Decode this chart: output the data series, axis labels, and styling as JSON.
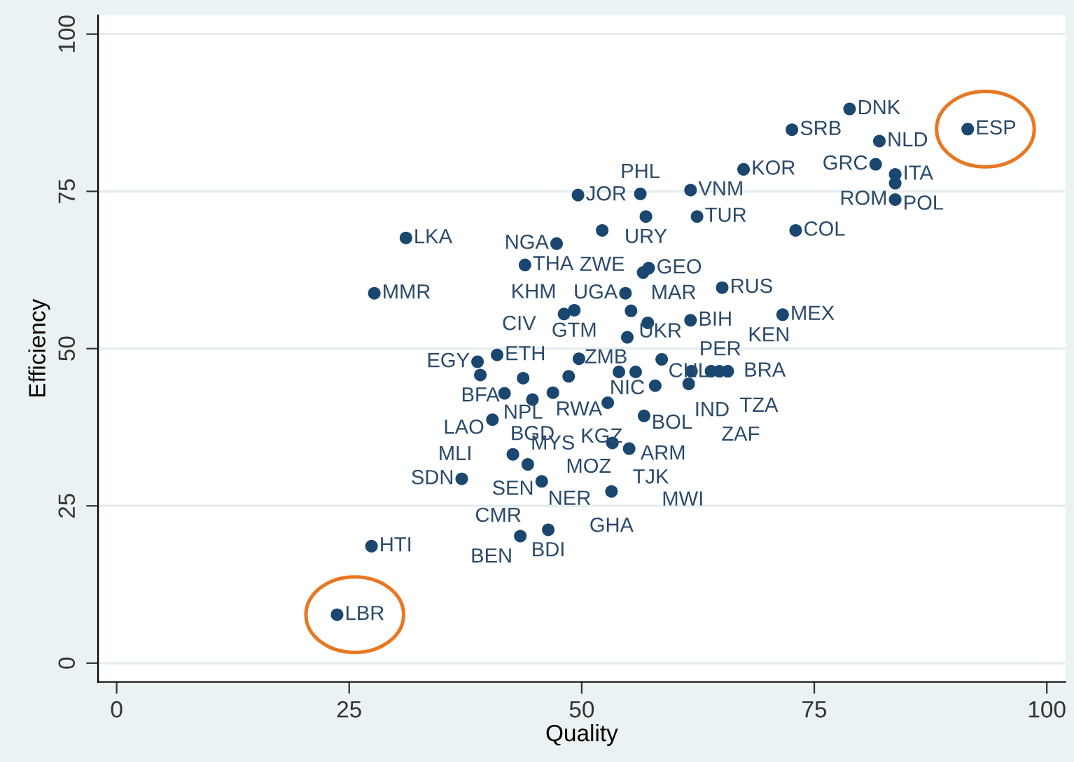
{
  "chart_data": {
    "type": "scatter",
    "xlabel": "Quality",
    "ylabel": "Efficiency",
    "xlim": [
      -2,
      102
    ],
    "ylim": [
      -3,
      103
    ],
    "xticks": [
      0,
      25,
      50,
      75,
      100
    ],
    "yticks": [
      0,
      25,
      50,
      75,
      100
    ],
    "grid": "y",
    "marker": "circle",
    "series": [
      {
        "color": "#1a476f",
        "x": [
          78.8,
          91.5,
          72.6,
          82.0,
          67.4,
          81.6,
          83.7,
          83.7,
          83.7,
          61.7,
          49.6,
          56.3,
          56.9,
          62.4,
          73.0,
          31.1,
          52.2,
          47.3,
          43.9,
          57.2,
          56.6,
          65.1,
          27.7,
          54.7,
          49.2,
          48.1,
          55.3,
          57.1,
          61.7,
          71.6,
          54.9,
          40.9,
          38.8,
          49.7,
          58.6,
          39.1,
          43.7,
          48.6,
          54.0,
          55.8,
          61.8,
          63.9,
          64.8,
          65.7,
          57.9,
          61.5,
          41.7,
          44.7,
          46.9,
          52.8,
          40.4,
          56.7,
          53.3,
          55.1,
          42.6,
          44.2,
          37.1,
          45.7,
          53.2,
          46.4,
          43.4,
          27.4,
          23.7
        ],
        "values": [
          88.1,
          84.9,
          84.8,
          83.0,
          78.5,
          79.3,
          77.7,
          76.3,
          73.7,
          75.2,
          74.4,
          74.6,
          71.0,
          71.0,
          68.8,
          67.6,
          68.8,
          66.7,
          63.3,
          62.8,
          62.1,
          59.7,
          58.8,
          58.8,
          56.1,
          55.5,
          56.0,
          54.1,
          54.5,
          55.4,
          51.8,
          49.0,
          47.9,
          48.4,
          48.3,
          45.8,
          45.3,
          45.6,
          46.3,
          46.3,
          46.4,
          46.4,
          46.4,
          46.4,
          44.1,
          44.4,
          42.9,
          41.9,
          43.0,
          41.4,
          38.7,
          39.3,
          35.0,
          34.1,
          33.2,
          31.6,
          29.3,
          28.9,
          27.3,
          21.2,
          20.2,
          18.6,
          7.7
        ]
      }
    ],
    "annotations": [
      {
        "text": "DNK",
        "x": 78.8,
        "y": 88.1
      },
      {
        "text": "ESP",
        "x": 91.5,
        "y": 84.9
      },
      {
        "text": "SRB",
        "x": 72.6,
        "y": 84.8
      },
      {
        "text": "NLD",
        "x": 82.0,
        "y": 83.0
      },
      {
        "text": "KOR",
        "x": 67.4,
        "y": 78.5
      },
      {
        "text": "GRC",
        "x": 81.6,
        "y": 79.3
      },
      {
        "text": "ITA",
        "x": 83.7,
        "y": 77.7
      },
      {
        "text": "POL",
        "x": 83.7,
        "y": 76.3
      },
      {
        "text": "ROM",
        "x": 83.7,
        "y": 73.7
      },
      {
        "text": "VNM",
        "x": 61.7,
        "y": 75.2
      },
      {
        "text": "JOR",
        "x": 49.6,
        "y": 74.4
      },
      {
        "text": "PHL",
        "x": 56.3,
        "y": 74.6
      },
      {
        "text": "URY",
        "x": 56.9,
        "y": 71.0
      },
      {
        "text": "TUR",
        "x": 62.4,
        "y": 71.0
      },
      {
        "text": "COL",
        "x": 73.0,
        "y": 68.8
      },
      {
        "text": "LKA",
        "x": 31.1,
        "y": 67.6
      },
      {
        "text": "ZWE",
        "x": 52.2,
        "y": 68.8
      },
      {
        "text": "NGA",
        "x": 47.3,
        "y": 66.7
      },
      {
        "text": "THA",
        "x": 43.9,
        "y": 63.3
      },
      {
        "text": "GEO",
        "x": 57.2,
        "y": 62.8
      },
      {
        "text": "MAR",
        "x": 56.6,
        "y": 62.1
      },
      {
        "text": "RUS",
        "x": 65.1,
        "y": 59.7
      },
      {
        "text": "MMR",
        "x": 27.7,
        "y": 58.8
      },
      {
        "text": "UGA",
        "x": 54.7,
        "y": 58.8
      },
      {
        "text": "GTM",
        "x": 49.2,
        "y": 56.1
      },
      {
        "text": "KHM",
        "x": 48.1,
        "y": 55.5
      },
      {
        "text": "UKR",
        "x": 55.3,
        "y": 56.0
      },
      {
        "text": "ZMB",
        "x": 57.1,
        "y": 54.1
      },
      {
        "text": "BIH",
        "x": 61.7,
        "y": 54.5
      },
      {
        "text": "MEX",
        "x": 71.6,
        "y": 55.4
      },
      {
        "text": "NIC",
        "x": 54.9,
        "y": 51.8
      },
      {
        "text": "ETH",
        "x": 40.9,
        "y": 49.0
      },
      {
        "text": "EGY",
        "x": 38.8,
        "y": 47.9
      },
      {
        "text": "RWA",
        "x": 49.7,
        "y": 48.4
      },
      {
        "text": "IND",
        "x": 58.6,
        "y": 48.3
      },
      {
        "text": "BFA",
        "x": 39.1,
        "y": 45.8
      },
      {
        "text": "NPL",
        "x": 43.7,
        "y": 45.3
      },
      {
        "text": "CIV",
        "x": 48.6,
        "y": 45.6
      },
      {
        "text": "BOL",
        "x": 54.0,
        "y": 46.3
      },
      {
        "text": "CHL",
        "x": 55.8,
        "y": 46.3
      },
      {
        "text": "PER",
        "x": 61.8,
        "y": 46.4
      },
      {
        "text": "BRA",
        "x": 63.9,
        "y": 46.4
      },
      {
        "text": "TZA",
        "x": 64.8,
        "y": 46.4
      },
      {
        "text": "KEN",
        "x": 65.7,
        "y": 46.4
      },
      {
        "text": "KGZ",
        "x": 57.9,
        "y": 44.1
      },
      {
        "text": "ZAF",
        "x": 61.5,
        "y": 44.4
      },
      {
        "text": "LAO",
        "x": 41.7,
        "y": 42.9
      },
      {
        "text": "BGD",
        "x": 44.7,
        "y": 41.9
      },
      {
        "text": "MYS",
        "x": 46.9,
        "y": 43.0
      },
      {
        "text": "ARM",
        "x": 52.8,
        "y": 41.4
      },
      {
        "text": "MLI",
        "x": 40.4,
        "y": 38.7
      },
      {
        "text": "MOZ",
        "x": 56.7,
        "y": 39.3
      },
      {
        "text": "TJK",
        "x": 53.3,
        "y": 35.0
      },
      {
        "text": "MWI",
        "x": 55.1,
        "y": 34.1
      },
      {
        "text": "SEN",
        "x": 42.6,
        "y": 33.2
      },
      {
        "text": "NER",
        "x": 44.2,
        "y": 31.6
      },
      {
        "text": "SDN",
        "x": 37.1,
        "y": 29.3
      },
      {
        "text": "CMR",
        "x": 45.7,
        "y": 28.9
      },
      {
        "text": "GHA",
        "x": 53.2,
        "y": 27.3
      },
      {
        "text": "BDI",
        "x": 46.4,
        "y": 21.2
      },
      {
        "text": "BEN",
        "x": 43.4,
        "y": 20.2
      },
      {
        "text": "HTI",
        "x": 27.4,
        "y": 18.6
      },
      {
        "text": "LBR",
        "x": 23.7,
        "y": 7.7
      }
    ]
  }
}
